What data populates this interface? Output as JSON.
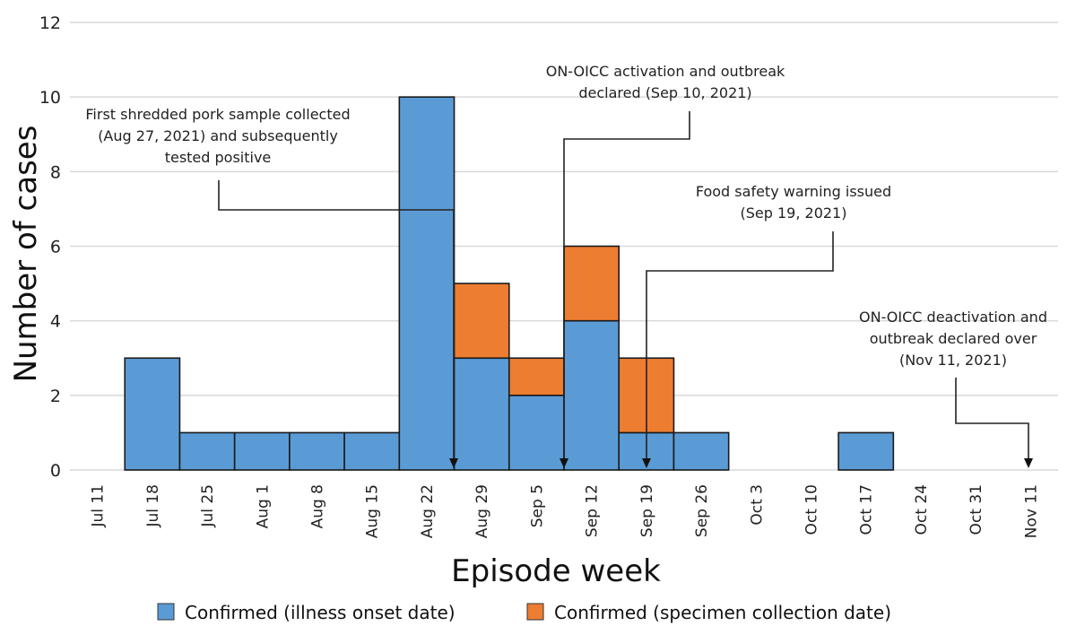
{
  "chart_data": {
    "type": "bar",
    "stacked": true,
    "title": "",
    "xlabel": "Episode week",
    "ylabel": "Number of cases",
    "ylim": [
      0,
      12
    ],
    "yticks": [
      0,
      2,
      4,
      6,
      8,
      10,
      12
    ],
    "grid": true,
    "categories": [
      "Jul 11",
      "Jul 18",
      "Jul 25",
      "Aug 1",
      "Aug 8",
      "Aug 15",
      "Aug 22",
      "Aug 29",
      "Sep 5",
      "Sep 12",
      "Sep 19",
      "Sep 26",
      "Oct 3",
      "Oct 10",
      "Oct 17",
      "Oct 24",
      "Oct 31",
      "Nov 11"
    ],
    "series": [
      {
        "name": "Confirmed (illness onset date)",
        "color": "#5B9BD5",
        "values": [
          0,
          3,
          1,
          1,
          1,
          1,
          10,
          3,
          2,
          4,
          1,
          1,
          0,
          0,
          1,
          0,
          0,
          0
        ]
      },
      {
        "name": "Confirmed (specimen collection date)",
        "color": "#ED7D31",
        "values": [
          0,
          0,
          0,
          0,
          0,
          0,
          0,
          2,
          1,
          2,
          2,
          0,
          0,
          0,
          0,
          0,
          0,
          0
        ]
      }
    ],
    "legend_position": "bottom",
    "annotations": [
      {
        "lines": [
          "First shredded pork sample collected",
          "(Aug 27, 2021) and subsequently",
          "tested positive"
        ],
        "date": "Aug 27, 2021",
        "x_category_offset": 6.5
      },
      {
        "lines": [
          "ON-OICC activation and outbreak",
          "declared (Sep 10, 2021)"
        ],
        "date": "Sep 10, 2021",
        "x_category_offset": 8.5
      },
      {
        "lines": [
          "Food safety warning issued",
          "(Sep 19, 2021)"
        ],
        "date": "Sep 19, 2021",
        "x_category_offset": 10.0
      },
      {
        "lines": [
          "ON-OICC deactivation and",
          "outbreak declared over",
          "(Nov 11, 2021)"
        ],
        "date": "Nov 11, 2021",
        "x_category_offset": 17.0
      }
    ]
  }
}
